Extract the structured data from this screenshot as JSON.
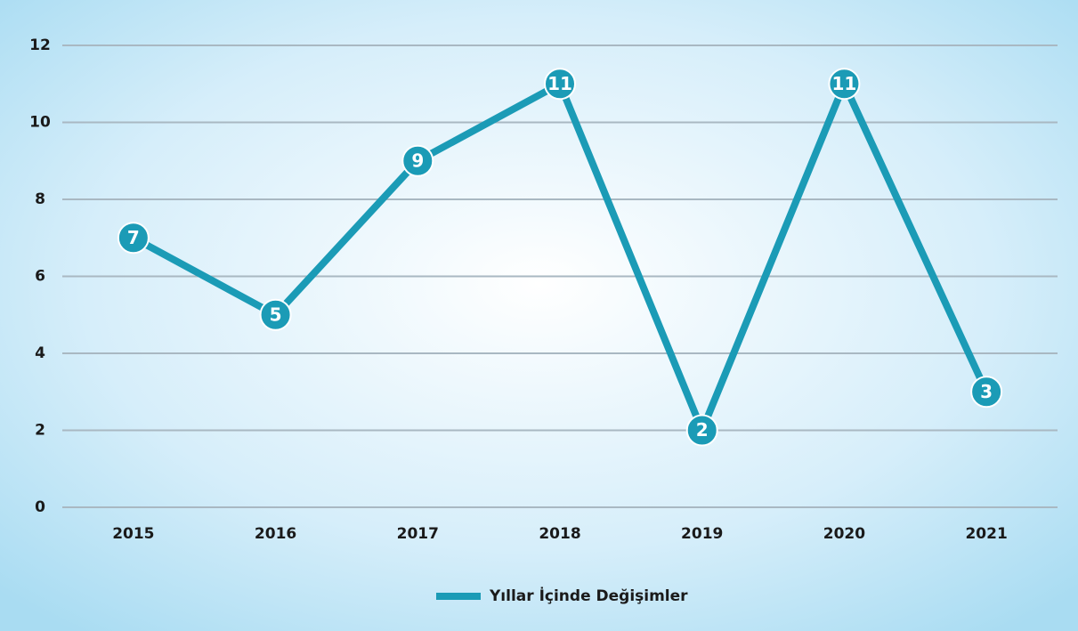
{
  "chart_data": {
    "type": "line",
    "categories": [
      "2015",
      "2016",
      "2017",
      "2018",
      "2019",
      "2020",
      "2021"
    ],
    "series": [
      {
        "name": "Yıllar İçinde Değişimler",
        "color": "#1b9bb6",
        "values": [
          7,
          5,
          9,
          11,
          2,
          11,
          3
        ]
      }
    ],
    "ylim": [
      0,
      12
    ],
    "yticks": [
      0,
      2,
      4,
      6,
      8,
      10,
      12
    ],
    "grid": true,
    "legend": "bottom"
  }
}
